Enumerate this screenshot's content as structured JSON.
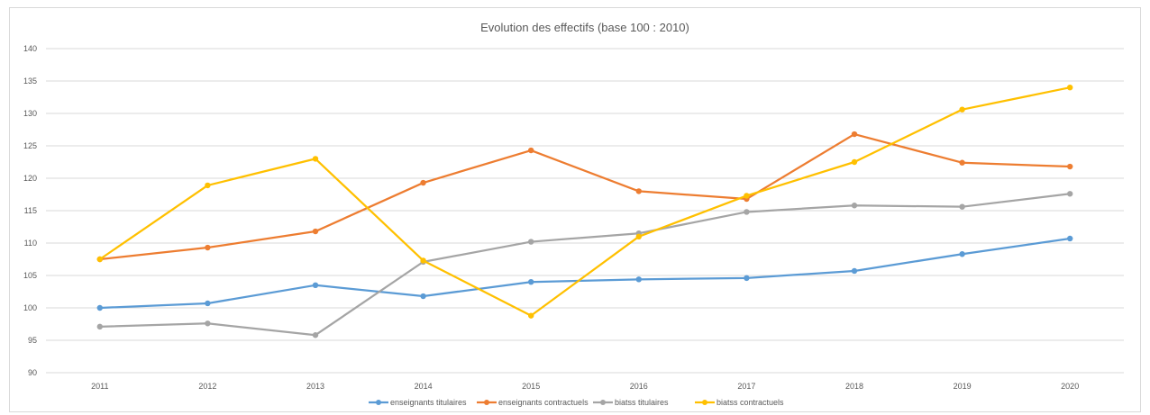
{
  "chart_data": {
    "type": "line",
    "title": "Evolution des effectifs (base 100 : 2010)",
    "xlabel": "",
    "ylabel": "",
    "categories": [
      "2011",
      "2012",
      "2013",
      "2014",
      "2015",
      "2016",
      "2017",
      "2018",
      "2019",
      "2020"
    ],
    "ylim": [
      90,
      140
    ],
    "yticks": [
      90,
      95,
      100,
      105,
      110,
      115,
      120,
      125,
      130,
      135,
      140
    ],
    "grid": true,
    "legend_position": "bottom",
    "series": [
      {
        "name": "enseignants titulaires",
        "color": "#5b9bd5",
        "values": [
          100.0,
          100.7,
          103.5,
          101.8,
          104.0,
          104.4,
          104.6,
          105.7,
          108.3,
          110.7
        ]
      },
      {
        "name": "enseignants contractuels",
        "color": "#ed7d31",
        "values": [
          107.5,
          109.3,
          111.8,
          119.3,
          124.3,
          118.0,
          116.8,
          126.8,
          122.4,
          121.8
        ]
      },
      {
        "name": "biatss titulaires",
        "color": "#a5a5a5",
        "values": [
          97.1,
          97.6,
          95.8,
          107.1,
          110.2,
          111.5,
          114.8,
          115.8,
          115.6,
          117.6
        ]
      },
      {
        "name": "biatss contractuels",
        "color": "#ffc000",
        "values": [
          107.5,
          118.9,
          123.0,
          107.3,
          98.8,
          111.0,
          117.3,
          122.5,
          130.6,
          134.0
        ]
      }
    ]
  }
}
